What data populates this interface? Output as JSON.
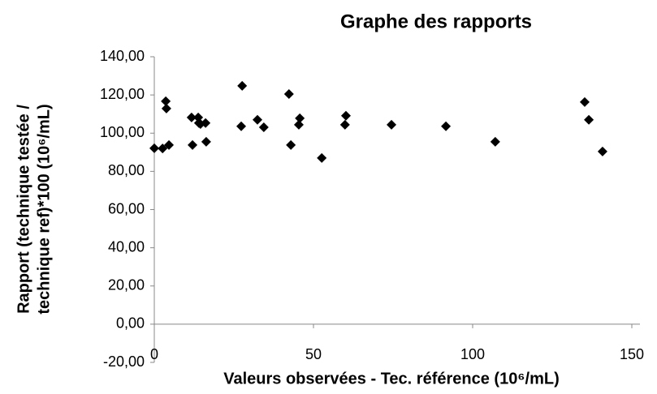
{
  "chart_data": {
    "type": "scatter",
    "title": "Graphe des rapports",
    "x_label": "Valeurs observées - Tec. référence (10⁶/mL)",
    "y_label": [
      "Rapport (technique testée /",
      "technique ref)*100 (10⁶/mL)"
    ],
    "color": "#000000",
    "marker": "diamond",
    "x": [
      0,
      2.6,
      3.6,
      3.8,
      4.6,
      11.7,
      12,
      13.8,
      14,
      14.5,
      16.1,
      16.3,
      27.3,
      27.6,
      32.4,
      34.4,
      42.3,
      42.9,
      45.7,
      45.4,
      52.6,
      60.2,
      59.9,
      74.5,
      91.6,
      107.1,
      135.2,
      136.5,
      140.8
    ],
    "values": [
      92.1,
      92,
      116.7,
      112.9,
      93.8,
      108.2,
      93.8,
      108.2,
      105.3,
      104.8,
      105.3,
      95.5,
      103.6,
      124.8,
      107,
      103.1,
      120.5,
      93.8,
      107.8,
      104.4,
      87,
      109.1,
      104.4,
      104.4,
      103.6,
      95.5,
      116.3,
      107,
      90.4
    ],
    "xlim": [
      0,
      150
    ],
    "xticks": [
      0,
      50,
      100,
      150
    ],
    "ylim": [
      -20,
      140
    ],
    "yticks": [
      {
        "value": -20,
        "label": "-20,00"
      },
      {
        "value": 0,
        "label": "0,00"
      },
      {
        "value": 20,
        "label": "20,00"
      },
      {
        "value": 40,
        "label": "40,00"
      },
      {
        "value": 60,
        "label": "60,00"
      },
      {
        "value": 80,
        "label": "80,00"
      },
      {
        "value": 100,
        "label": "100,00"
      },
      {
        "value": 120,
        "label": "120,00"
      },
      {
        "value": 140,
        "label": "140,00"
      }
    ],
    "grid": false
  }
}
